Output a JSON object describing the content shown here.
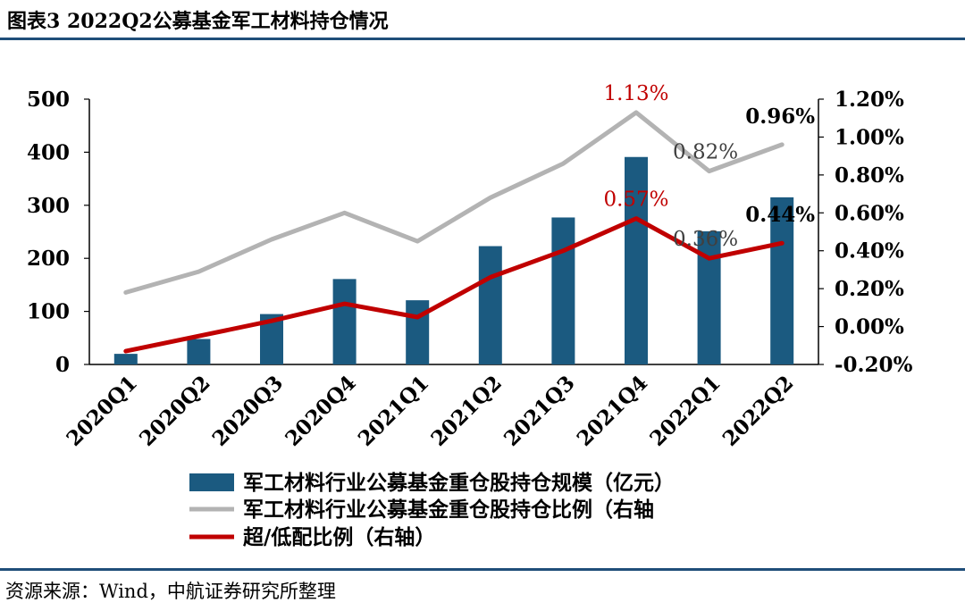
{
  "header": {
    "title": "图表3  2022Q2公募基金军工材料持仓情况"
  },
  "footer": {
    "source": "资源来源：Wind，中航证券研究所整理"
  },
  "colors": {
    "bar": "#1b5a80",
    "gray_line": "#b3b3b3",
    "red_line": "#c00000",
    "rule": "#1f4e79"
  },
  "chart_data": {
    "type": "bar",
    "categories": [
      "2020Q1",
      "2020Q2",
      "2020Q3",
      "2020Q4",
      "2021Q1",
      "2021Q2",
      "2021Q3",
      "2021Q4",
      "2022Q1",
      "2022Q2"
    ],
    "left_axis": {
      "min": 0,
      "max": 500,
      "ticks": [
        0,
        100,
        200,
        300,
        400,
        500
      ],
      "tick_labels": [
        "0",
        "100",
        "200",
        "300",
        "400",
        "500"
      ]
    },
    "right_axis": {
      "min": -0.2,
      "max": 1.2,
      "ticks": [
        -0.2,
        0,
        0.2,
        0.4,
        0.6,
        0.8,
        1.0,
        1.2
      ],
      "tick_labels": [
        "-0.20%",
        "0.00%",
        "0.20%",
        "0.40%",
        "0.60%",
        "0.80%",
        "1.00%",
        "1.20%"
      ]
    },
    "series": [
      {
        "name": "军工材料行业公募基金重仓股持仓规模（亿元）",
        "kind": "bar",
        "axis": "left",
        "values": [
          20,
          48,
          95,
          161,
          121,
          223,
          277,
          391,
          251,
          315
        ]
      },
      {
        "name": "军工材料行业公募基金重仓股持仓比例（右轴",
        "kind": "line",
        "axis": "right",
        "values": [
          0.18,
          0.29,
          0.46,
          0.6,
          0.45,
          0.68,
          0.86,
          1.13,
          0.82,
          0.96
        ]
      },
      {
        "name": "超/低配比例（右轴）",
        "kind": "line",
        "axis": "right",
        "values": [
          -0.13,
          -0.05,
          0.03,
          0.12,
          0.05,
          0.26,
          0.4,
          0.57,
          0.36,
          0.44
        ]
      }
    ],
    "annotations": [
      {
        "text": "1.13%",
        "series": 1,
        "index": 7,
        "color": "#c00000",
        "bold": false
      },
      {
        "text": "0.82%",
        "series": 1,
        "index": 8,
        "color": "#404040",
        "bold": false
      },
      {
        "text": "0.96%",
        "series": 1,
        "index": 9,
        "color": "#000000",
        "bold": true
      },
      {
        "text": "0.57%",
        "series": 2,
        "index": 7,
        "color": "#c00000",
        "bold": false
      },
      {
        "text": "0.36%",
        "series": 2,
        "index": 8,
        "color": "#404040",
        "bold": false
      },
      {
        "text": "0.44%",
        "series": 2,
        "index": 9,
        "color": "#000000",
        "bold": true
      }
    ],
    "legend_position": "bottom"
  }
}
